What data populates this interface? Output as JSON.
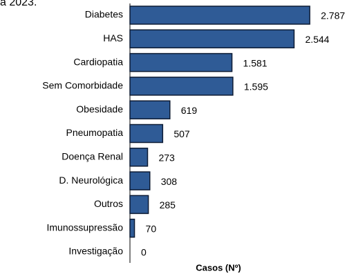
{
  "chart_data": {
    "type": "hbar",
    "title": "a 2023.",
    "categories": [
      "Diabetes",
      "HAS",
      "Cardiopatia",
      "Sem Comorbidade",
      "Obesidade",
      "Pneumopatia",
      "Doença Renal",
      "D. Neurológica",
      "Outros",
      "Imunossupressão",
      "Investigação"
    ],
    "values": [
      2787,
      2544,
      1581,
      1595,
      619,
      507,
      273,
      308,
      285,
      70,
      0
    ],
    "value_labels": [
      "2.787",
      "2.544",
      "1.581",
      "1.595",
      "619",
      "507",
      "273",
      "308",
      "285",
      "70",
      "0"
    ],
    "color": "#2f5b96",
    "xlabel": "Casos (Nº)",
    "xlim": [
      0,
      3000
    ]
  }
}
